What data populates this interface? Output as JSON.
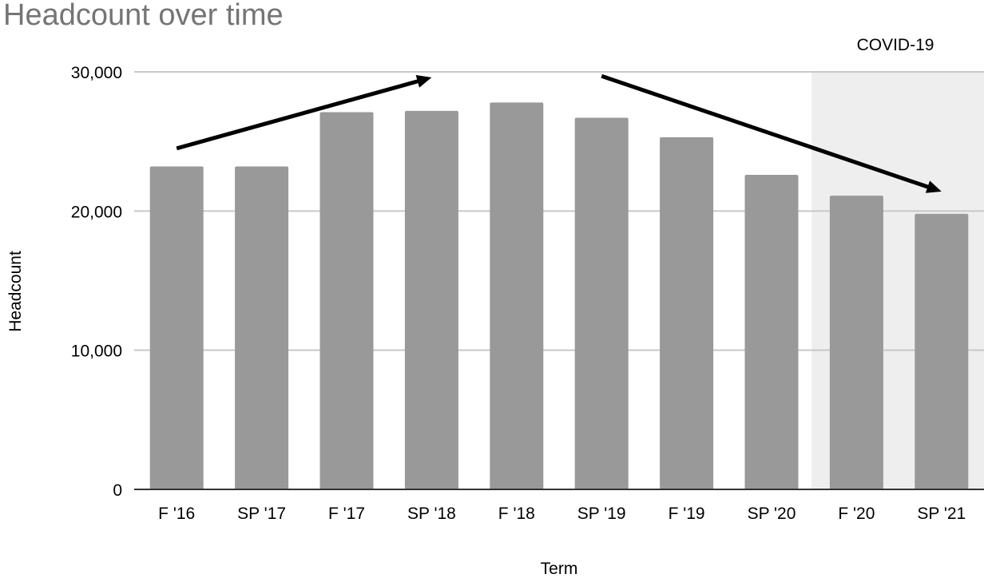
{
  "chart_data": {
    "type": "bar",
    "title": "Headcount over time",
    "xlabel": "Term",
    "ylabel": "Headcount",
    "categories": [
      "F '16",
      "SP '17",
      "F '17",
      "SP '18",
      "F '18",
      "SP '19",
      "F '19",
      "SP '20",
      "F '20",
      "SP '21"
    ],
    "values": [
      23200,
      23200,
      27100,
      27200,
      27800,
      26700,
      25300,
      22600,
      21100,
      19800
    ],
    "ylim": [
      0,
      30000
    ],
    "yticks": [
      0,
      10000,
      20000,
      30000
    ],
    "ytick_labels": [
      "0",
      "10,000",
      "20,000",
      "30,000"
    ],
    "grid": true,
    "bar_color": "#999999",
    "annotations": [
      {
        "text": "COVID-19",
        "shaded_range": [
          "F '20",
          "SP '21"
        ],
        "shade_color": "#eeeeee"
      }
    ],
    "trend_arrows": [
      {
        "from": [
          "F '16",
          24500
        ],
        "to": [
          "SP '18",
          29600
        ]
      },
      {
        "from": [
          "SP '19",
          29700
        ],
        "to": [
          "SP '21",
          21400
        ]
      }
    ]
  }
}
